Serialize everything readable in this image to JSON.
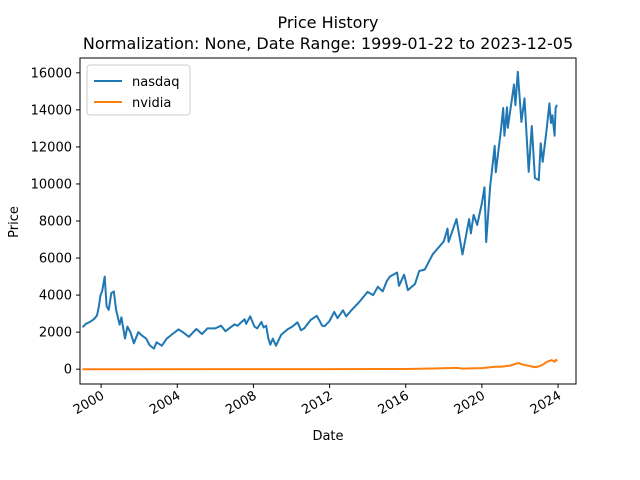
{
  "chart_data": {
    "type": "line",
    "title": "Price History",
    "subtitle": "Normalization: None, Date Range: 1999-01-22 to 2023-12-05",
    "xlabel": "Date",
    "ylabel": "Price",
    "xlim": [
      "1998-11-22",
      "2024-12-10"
    ],
    "ylim": [
      -800,
      16800
    ],
    "x_ticks": [
      "2000",
      "2004",
      "2008",
      "2012",
      "2016",
      "2020",
      "2024"
    ],
    "y_ticks": [
      "0",
      "2000",
      "4000",
      "6000",
      "8000",
      "10000",
      "12000",
      "14000",
      "16000"
    ],
    "grid": false,
    "legend": {
      "placement": "top-left",
      "entries": [
        "nasdaq",
        "nvidia"
      ]
    },
    "colors": {
      "nasdaq": "#1f77b4",
      "nvidia": "#ff7f0e"
    },
    "series": [
      {
        "name": "nasdaq",
        "points": [
          [
            "1999-01-22",
            2300
          ],
          [
            "1999-03-15",
            2450
          ],
          [
            "1999-06-01",
            2550
          ],
          [
            "1999-08-15",
            2700
          ],
          [
            "1999-10-15",
            2900
          ],
          [
            "1999-11-20",
            3400
          ],
          [
            "1999-12-20",
            4000
          ],
          [
            "2000-01-20",
            4200
          ],
          [
            "2000-03-10",
            5000
          ],
          [
            "2000-04-15",
            3400
          ],
          [
            "2000-05-25",
            3200
          ],
          [
            "2000-07-15",
            4100
          ],
          [
            "2000-09-01",
            4200
          ],
          [
            "2000-10-15",
            3200
          ],
          [
            "2000-12-20",
            2400
          ],
          [
            "2001-01-25",
            2800
          ],
          [
            "2001-04-04",
            1650
          ],
          [
            "2001-05-20",
            2300
          ],
          [
            "2001-07-15",
            2000
          ],
          [
            "2001-09-21",
            1400
          ],
          [
            "2001-12-15",
            2000
          ],
          [
            "2002-03-01",
            1800
          ],
          [
            "2002-05-15",
            1650
          ],
          [
            "2002-07-20",
            1300
          ],
          [
            "2002-10-09",
            1110
          ],
          [
            "2002-12-01",
            1450
          ],
          [
            "2003-03-10",
            1270
          ],
          [
            "2003-06-15",
            1650
          ],
          [
            "2003-10-01",
            1900
          ],
          [
            "2004-01-25",
            2150
          ],
          [
            "2004-04-15",
            2000
          ],
          [
            "2004-08-12",
            1750
          ],
          [
            "2004-12-31",
            2170
          ],
          [
            "2005-04-20",
            1900
          ],
          [
            "2005-08-01",
            2200
          ],
          [
            "2005-12-31",
            2200
          ],
          [
            "2006-04-20",
            2350
          ],
          [
            "2006-07-15",
            2050
          ],
          [
            "2006-12-31",
            2420
          ],
          [
            "2007-03-01",
            2350
          ],
          [
            "2007-07-15",
            2700
          ],
          [
            "2007-08-15",
            2450
          ],
          [
            "2007-10-31",
            2850
          ],
          [
            "2008-01-22",
            2300
          ],
          [
            "2008-03-15",
            2200
          ],
          [
            "2008-06-01",
            2550
          ],
          [
            "2008-07-15",
            2250
          ],
          [
            "2008-09-01",
            2350
          ],
          [
            "2008-10-15",
            1650
          ],
          [
            "2008-11-20",
            1320
          ],
          [
            "2009-01-06",
            1650
          ],
          [
            "2009-03-09",
            1270
          ],
          [
            "2009-06-15",
            1850
          ],
          [
            "2009-10-15",
            2150
          ],
          [
            "2010-01-15",
            2300
          ],
          [
            "2010-04-25",
            2530
          ],
          [
            "2010-07-01",
            2100
          ],
          [
            "2010-09-01",
            2200
          ],
          [
            "2010-12-31",
            2650
          ],
          [
            "2011-04-29",
            2880
          ],
          [
            "2011-06-15",
            2650
          ],
          [
            "2011-08-10",
            2350
          ],
          [
            "2011-10-03",
            2330
          ],
          [
            "2011-12-31",
            2600
          ],
          [
            "2012-03-30",
            3090
          ],
          [
            "2012-06-01",
            2750
          ],
          [
            "2012-09-15",
            3180
          ],
          [
            "2012-11-15",
            2850
          ],
          [
            "2013-03-01",
            3200
          ],
          [
            "2013-07-15",
            3600
          ],
          [
            "2013-12-31",
            4170
          ],
          [
            "2014-04-15",
            4000
          ],
          [
            "2014-07-15",
            4450
          ],
          [
            "2014-10-15",
            4200
          ],
          [
            "2014-12-31",
            4750
          ],
          [
            "2015-03-02",
            5000
          ],
          [
            "2015-07-20",
            5220
          ],
          [
            "2015-08-24",
            4500
          ],
          [
            "2015-12-01",
            5100
          ],
          [
            "2016-02-11",
            4270
          ],
          [
            "2016-06-27",
            4600
          ],
          [
            "2016-09-15",
            5300
          ],
          [
            "2016-12-31",
            5380
          ],
          [
            "2017-06-01",
            6200
          ],
          [
            "2017-12-31",
            6900
          ],
          [
            "2018-03-12",
            7590
          ],
          [
            "2018-04-02",
            6870
          ],
          [
            "2018-08-31",
            8100
          ],
          [
            "2018-12-24",
            6190
          ],
          [
            "2019-04-30",
            8100
          ],
          [
            "2019-06-03",
            7330
          ],
          [
            "2019-07-26",
            8330
          ],
          [
            "2019-10-02",
            7790
          ],
          [
            "2019-12-31",
            8970
          ],
          [
            "2020-02-19",
            9820
          ],
          [
            "2020-03-23",
            6860
          ],
          [
            "2020-06-08",
            9900
          ],
          [
            "2020-09-02",
            12050
          ],
          [
            "2020-09-23",
            10630
          ],
          [
            "2020-12-31",
            12890
          ],
          [
            "2021-02-12",
            14100
          ],
          [
            "2021-03-08",
            12600
          ],
          [
            "2021-04-26",
            14140
          ],
          [
            "2021-05-12",
            13030
          ],
          [
            "2021-09-07",
            15370
          ],
          [
            "2021-10-04",
            14250
          ],
          [
            "2021-11-19",
            16060
          ],
          [
            "2022-01-27",
            13350
          ],
          [
            "2022-03-29",
            14620
          ],
          [
            "2022-06-16",
            10650
          ],
          [
            "2022-08-15",
            13130
          ],
          [
            "2022-10-13",
            10320
          ],
          [
            "2022-12-28",
            10210
          ],
          [
            "2023-02-02",
            12200
          ],
          [
            "2023-03-13",
            11190
          ],
          [
            "2023-05-30",
            13020
          ],
          [
            "2023-07-18",
            14350
          ],
          [
            "2023-08-18",
            13290
          ],
          [
            "2023-09-15",
            13700
          ],
          [
            "2023-10-26",
            12600
          ],
          [
            "2023-11-15",
            14100
          ],
          [
            "2023-12-05",
            14230
          ]
        ]
      },
      {
        "name": "nvidia",
        "points": [
          [
            "1999-01-22",
            0.4
          ],
          [
            "2002-01-02",
            1.5
          ],
          [
            "2007-01-02",
            5
          ],
          [
            "2008-12-01",
            2
          ],
          [
            "2012-01-02",
            3
          ],
          [
            "2015-12-31",
            8
          ],
          [
            "2017-06-01",
            36
          ],
          [
            "2018-10-01",
            68
          ],
          [
            "2018-12-24",
            32
          ],
          [
            "2019-06-01",
            40
          ],
          [
            "2019-12-31",
            58
          ],
          [
            "2020-09-01",
            135
          ],
          [
            "2021-01-04",
            131
          ],
          [
            "2021-07-01",
            200
          ],
          [
            "2021-11-29",
            333
          ],
          [
            "2022-03-01",
            240
          ],
          [
            "2022-10-13",
            112
          ],
          [
            "2022-12-30",
            146
          ],
          [
            "2023-03-31",
            277
          ],
          [
            "2023-06-01",
            397
          ],
          [
            "2023-08-31",
            493
          ],
          [
            "2023-10-26",
            403
          ],
          [
            "2023-11-20",
            504
          ],
          [
            "2023-12-05",
            465
          ]
        ]
      }
    ]
  }
}
